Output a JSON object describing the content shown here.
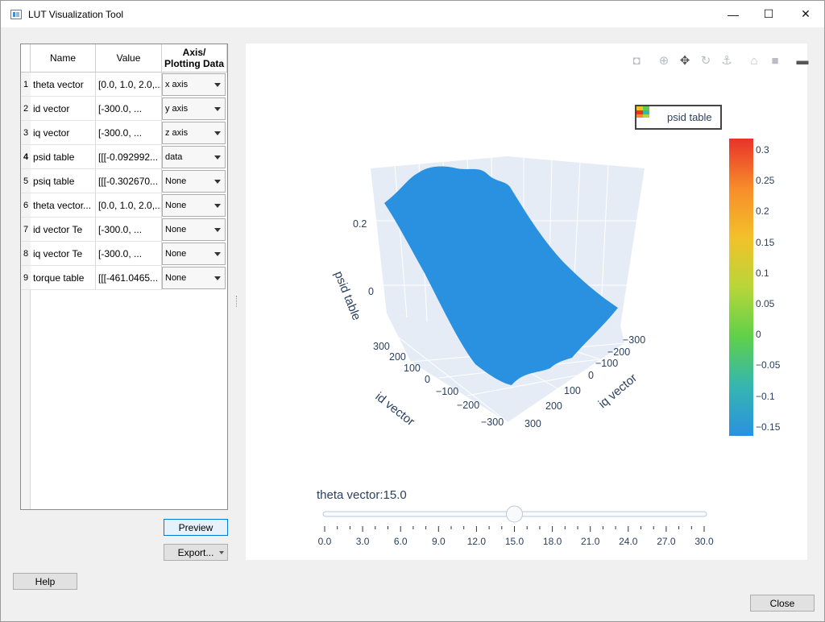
{
  "window": {
    "title": "LUT Visualization Tool",
    "controls": {
      "minimize": "—",
      "maximize": "☐",
      "close": "✕"
    }
  },
  "table": {
    "headers": {
      "name": "Name",
      "value": "Value",
      "axis_line1": "Axis/",
      "axis_line2": "Plotting Data"
    },
    "rows": [
      {
        "num": "1",
        "name": "theta vector",
        "value": "[0.0, 1.0, 2.0,...",
        "axis": "x axis"
      },
      {
        "num": "2",
        "name": "id vector",
        "value": "[-300.0, ...",
        "axis": "y axis"
      },
      {
        "num": "3",
        "name": "iq vector",
        "value": "[-300.0, ...",
        "axis": "z axis"
      },
      {
        "num": "4",
        "name": "psid table",
        "value": "[[[-0.092992...",
        "axis": "data"
      },
      {
        "num": "5",
        "name": "psiq table",
        "value": "[[[-0.302670...",
        "axis": "None"
      },
      {
        "num": "6",
        "name": "theta vector...",
        "value": "[0.0, 1.0, 2.0,...",
        "axis": "None"
      },
      {
        "num": "7",
        "name": "id vector Te",
        "value": "[-300.0, ...",
        "axis": "None"
      },
      {
        "num": "8",
        "name": "iq vector Te",
        "value": "[-300.0, ...",
        "axis": "None"
      },
      {
        "num": "9",
        "name": "torque table",
        "value": "[[[-461.0465...",
        "axis": "None"
      }
    ]
  },
  "buttons": {
    "preview": "Preview",
    "export": "Export...",
    "help": "Help",
    "close": "Close"
  },
  "plot": {
    "modebar_icons": [
      "camera-icon",
      "zoom-icon",
      "pan-icon",
      "orbit-rotation-icon",
      "turntable-rotation-icon",
      "reset-camera-icon",
      "camera-last-save-icon",
      "plotly-logo-icon"
    ],
    "legend": "psid table",
    "colorbar": {
      "colors": [
        "#2a91e0",
        "#35b6b0",
        "#5fd04a",
        "#b8d63a",
        "#f3c12a",
        "#f78c2a",
        "#e8322a"
      ],
      "ticks": [
        "0.3",
        "0.25",
        "0.2",
        "0.15",
        "0.1",
        "0.05",
        "0",
        "−0.05",
        "−0.1",
        "−0.15"
      ]
    },
    "slider": {
      "label": "theta vector:15.0",
      "current": 15.0,
      "min": 0,
      "max": 30,
      "tick_labels": [
        "0.0",
        "3.0",
        "6.0",
        "9.0",
        "12.0",
        "15.0",
        "18.0",
        "21.0",
        "24.0",
        "27.0",
        "30.0"
      ]
    }
  },
  "chart_data": {
    "type": "surface",
    "series": [
      {
        "name": "psid table"
      }
    ],
    "axes": {
      "x": {
        "label": "id vector",
        "ticks": [
          "300",
          "200",
          "100",
          "0",
          "−100",
          "−200",
          "−300"
        ]
      },
      "y": {
        "label": "iq vector",
        "ticks": [
          "−300",
          "−200",
          "−100",
          "0",
          "100",
          "200",
          "300"
        ]
      },
      "z": {
        "label": "psid table",
        "ticks": [
          "0",
          "0.2"
        ]
      }
    },
    "colorscale_range": [
      -0.15,
      0.32
    ]
  }
}
